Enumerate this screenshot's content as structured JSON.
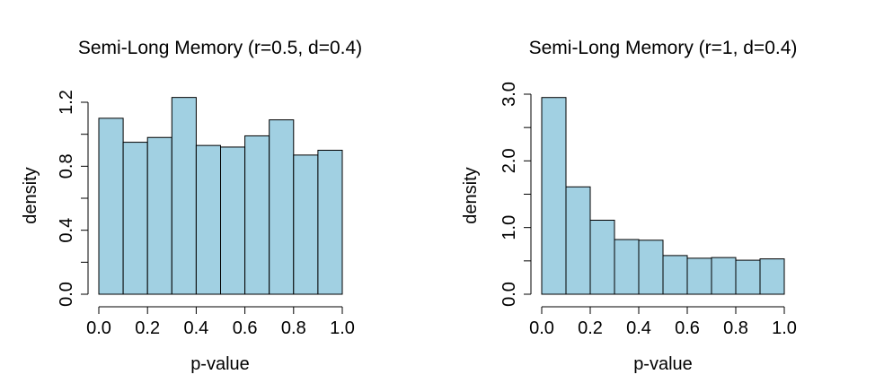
{
  "chart_data": [
    {
      "type": "bar",
      "title": "Semi-Long Memory (r=0.5, d=0.4)",
      "xlabel": "p-value",
      "ylabel": "density",
      "bin_edges": [
        0.0,
        0.1,
        0.2,
        0.3,
        0.4,
        0.5,
        0.6,
        0.7,
        0.8,
        0.9,
        1.0
      ],
      "values": [
        1.1,
        0.95,
        0.98,
        1.23,
        0.93,
        0.92,
        0.99,
        1.09,
        0.87,
        0.9
      ],
      "xlim": [
        0.0,
        1.0
      ],
      "ylim": [
        0.0,
        1.2
      ],
      "xticks": [
        0.0,
        0.2,
        0.4,
        0.6,
        0.8,
        1.0
      ],
      "xtick_labels": [
        "0.0",
        "0.2",
        "0.4",
        "0.6",
        "0.8",
        "1.0"
      ],
      "yticks": [
        0.0,
        0.2,
        0.4,
        0.6,
        0.8,
        1.0,
        1.2
      ],
      "ytick_labels": [
        "0.0",
        "",
        "0.4",
        "",
        "0.8",
        "",
        "1.2"
      ],
      "bar_color": "#a1d0e2"
    },
    {
      "type": "bar",
      "title": "Semi-Long Memory (r=1, d=0.4)",
      "xlabel": "p-value",
      "ylabel": "density",
      "bin_edges": [
        0.0,
        0.1,
        0.2,
        0.3,
        0.4,
        0.5,
        0.6,
        0.7,
        0.8,
        0.9,
        1.0
      ],
      "values": [
        2.95,
        1.61,
        1.11,
        0.82,
        0.81,
        0.58,
        0.54,
        0.55,
        0.51,
        0.53
      ],
      "xlim": [
        0.0,
        1.0
      ],
      "ylim": [
        0.0,
        3.0
      ],
      "xticks": [
        0.0,
        0.2,
        0.4,
        0.6,
        0.8,
        1.0
      ],
      "xtick_labels": [
        "0.0",
        "0.2",
        "0.4",
        "0.6",
        "0.8",
        "1.0"
      ],
      "yticks": [
        0.0,
        0.5,
        1.0,
        1.5,
        2.0,
        2.5,
        3.0
      ],
      "ytick_labels": [
        "0.0",
        "",
        "1.0",
        "",
        "2.0",
        "",
        "3.0"
      ],
      "bar_color": "#a1d0e2"
    }
  ]
}
